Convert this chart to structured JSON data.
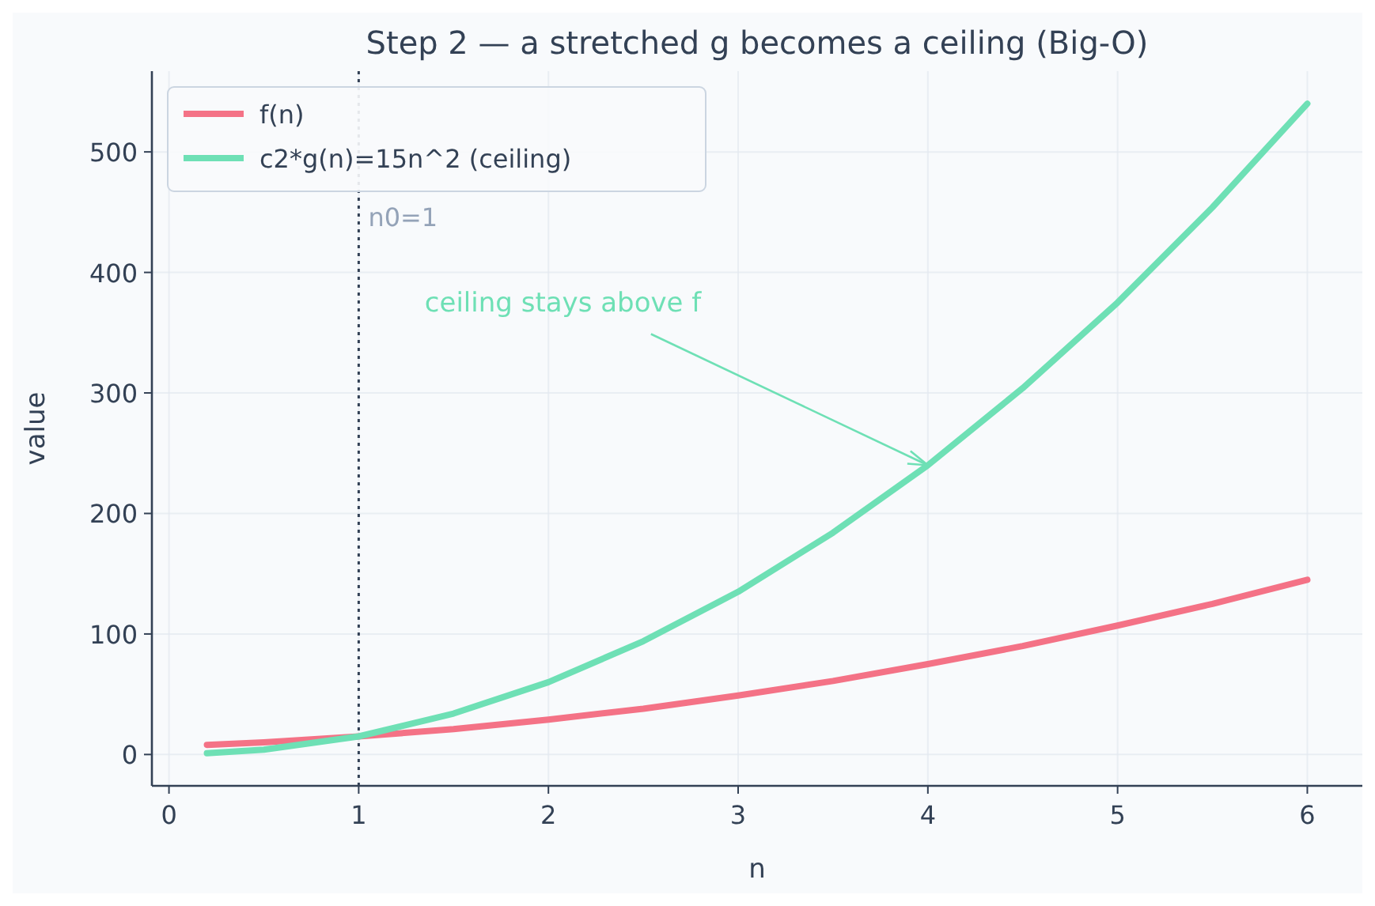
{
  "chart_data": {
    "type": "line",
    "title": "Step 2 — a stretched g becomes a ceiling (Big-O)",
    "xlabel": "n",
    "ylabel": "value",
    "x": [
      0.2,
      0.5,
      1,
      1.5,
      2,
      2.5,
      3,
      3.5,
      4,
      4.5,
      5,
      5.5,
      6
    ],
    "series": [
      {
        "name": "f(n)",
        "color": "#f47286",
        "values": [
          8,
          10,
          15,
          21,
          29,
          38,
          49,
          61,
          75,
          90,
          107,
          125,
          145
        ]
      },
      {
        "name": "c2*g(n)=15n^2 (ceiling)",
        "color": "#6ee0b5",
        "values": [
          1,
          4,
          15,
          34,
          60,
          94,
          135,
          184,
          240,
          304,
          375,
          454,
          540
        ]
      }
    ],
    "xlim": [
      -0.09,
      6.29
    ],
    "xticks": [
      0,
      1,
      2,
      3,
      4,
      5,
      6
    ],
    "ylim": [
      -26,
      567
    ],
    "yticks": [
      0,
      100,
      200,
      300,
      400,
      500
    ],
    "grid": true,
    "legend": "top left",
    "marker": "none",
    "line_style": "solid",
    "ref_lines": [
      {
        "axis": "x",
        "value": 1,
        "label": "n0=1",
        "color": "#334155",
        "line_style": "dotted"
      }
    ],
    "annotations": [
      {
        "text": "ceiling stays above f",
        "x": 4,
        "y": 240
      }
    ]
  }
}
